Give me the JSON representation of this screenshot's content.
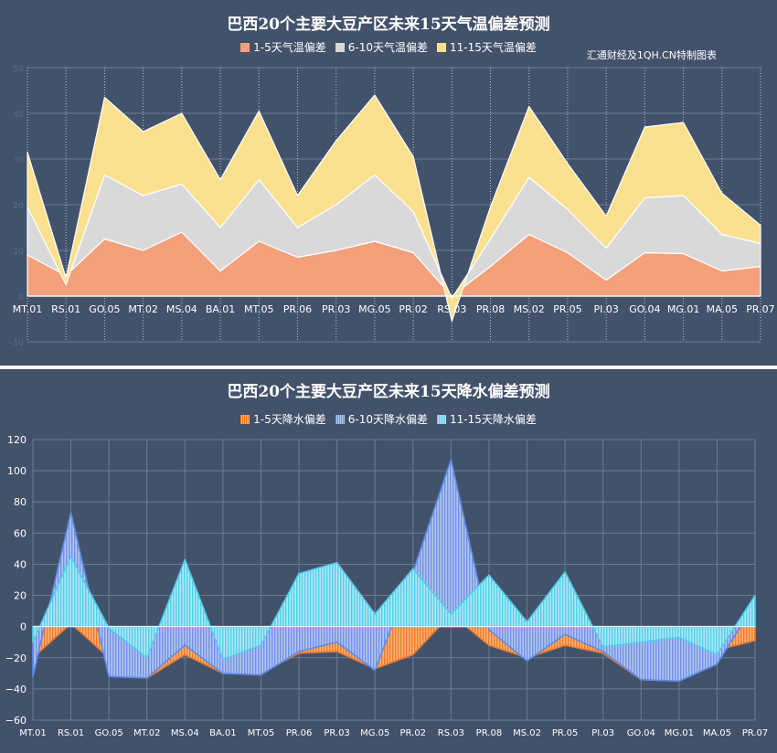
{
  "chart_data": [
    {
      "type": "area",
      "stacked": true,
      "title": "巴西20个主要大豆产区未来15天气温偏差预测",
      "source_note": "汇通财经及1QH.CN特制图表",
      "categories": [
        "MT.01",
        "RS.01",
        "GO.05",
        "MT.02",
        "MS.04",
        "BA.01",
        "MT.05",
        "PR.06",
        "PR.03",
        "MG.05",
        "PR.02",
        "RS.03",
        "PR.08",
        "MS.02",
        "PR.05",
        "PI.03",
        "GO.04",
        "MG.01",
        "MA.05",
        "PR.07"
      ],
      "ylim": [
        -10,
        50
      ],
      "yticks": [
        -10,
        0,
        10,
        20,
        30,
        40,
        50
      ],
      "ytick_labels": [
        "-10",
        "0",
        "10",
        "20",
        "30",
        "40",
        "50"
      ],
      "grid": true,
      "legend_position": "top",
      "series": [
        {
          "name": "1-5天气温偏差",
          "color": "#f4a07a",
          "values": [
            9,
            4.5,
            12.5,
            10,
            14,
            5.5,
            12,
            8.5,
            10,
            12,
            9.5,
            0,
            6.5,
            13.5,
            9.5,
            3.5,
            9.5,
            9.3,
            5.5,
            6.5
          ]
        },
        {
          "name": "6-10天气温偏差",
          "color": "#d9d9d9",
          "values": [
            10.5,
            -2,
            14,
            12,
            10.5,
            9.5,
            13.5,
            6.5,
            10,
            14.5,
            9,
            -0.5,
            6,
            12.5,
            9.5,
            7,
            12,
            12.7,
            8,
            5
          ]
        },
        {
          "name": "11-15天气温偏差",
          "color": "#fbe18f",
          "values": [
            12,
            1.5,
            17,
            14,
            15.5,
            10.5,
            15,
            7,
            14,
            17.5,
            12,
            -5,
            7,
            15.5,
            10,
            7,
            15.5,
            16,
            9,
            4
          ]
        }
      ]
    },
    {
      "type": "area",
      "stacked": false,
      "title": "巴西20个主要大豆产区未来15天降水偏差预测",
      "categories": [
        "MT.01",
        "RS.01",
        "GO.05",
        "MT.02",
        "MS.04",
        "BA.01",
        "MT.05",
        "PR.06",
        "PR.03",
        "MG.05",
        "PR.02",
        "RS.03",
        "PR.08",
        "MS.02",
        "PR.05",
        "PI.03",
        "GO.04",
        "MG.01",
        "MA.05",
        "PR.07"
      ],
      "ylim": [
        -60,
        120
      ],
      "yticks": [
        -60,
        -40,
        -20,
        0,
        20,
        40,
        60,
        80,
        100,
        120
      ],
      "ytick_labels": [
        "−60",
        "−40",
        "−20",
        "0",
        "20",
        "40",
        "60",
        "80",
        "100",
        "120"
      ],
      "grid": true,
      "legend_position": "top",
      "series": [
        {
          "name": "1-5天降水偏差",
          "color": "#f07a2a",
          "values": [
            -20,
            2,
            -20,
            -33,
            -18,
            -30,
            -30,
            -17,
            -16,
            -27,
            -18,
            8,
            -12,
            -20,
            -12,
            -17,
            -34,
            -35,
            -15,
            -9
          ]
        },
        {
          "name": "6-10天降水偏差",
          "color": "#8aa5e8",
          "values": [
            -32,
            73,
            -32,
            -33,
            -12,
            -30,
            -31,
            -16,
            -10,
            -28,
            35,
            107,
            -2,
            -22,
            -5,
            -16,
            -34,
            -35,
            -24,
            15
          ]
        },
        {
          "name": "11-15天降水偏差",
          "color": "#7fdcf2",
          "values": [
            -10,
            45,
            -1,
            -20,
            43,
            -21,
            -12,
            34,
            41,
            8,
            37,
            8,
            33,
            3,
            35,
            -13,
            -10,
            -7,
            -18,
            20
          ]
        }
      ]
    }
  ]
}
